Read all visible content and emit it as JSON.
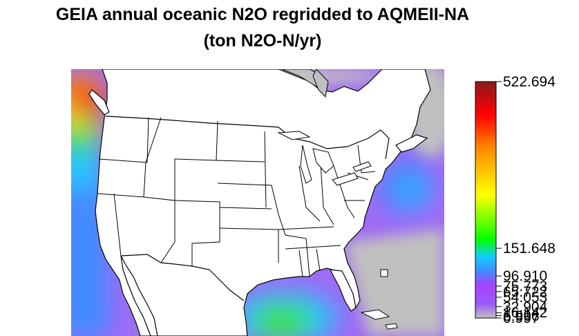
{
  "title": {
    "line1": "GEIA annual oceanic N2O regridded to AQMEII-NA",
    "line2": "(ton N2O-N/yr)"
  },
  "legend": {
    "breaks": [
      "522.694",
      "151.648",
      "96.910",
      "75.773",
      "65.722",
      "54.053",
      "32.904",
      "16.142",
      "6.996",
      "0.997"
    ],
    "break_values": [
      522.694,
      151.648,
      96.91,
      75.773,
      65.722,
      54.053,
      32.904,
      16.142,
      6.996,
      0.997
    ],
    "colors": [
      "#c0c0c0",
      "#9b59f5",
      "#a742ff",
      "#3f8cff",
      "#14ccff",
      "#00ff00",
      "#ffff00",
      "#ff8800",
      "#ff0000",
      "#8b1a1a"
    ]
  },
  "map": {
    "region": "AQMEII-NA",
    "colors": {
      "land": "#ffffff",
      "low": "#c0c0c0",
      "mid": "#a16af6",
      "blue": "#3f8cff",
      "cyan": "#14ccff",
      "green": "#3de03d",
      "yellow": "#ffff22",
      "orange": "#ff8c00",
      "red": "#ff2200",
      "darkred": "#8b1a1a",
      "outline": "#000000"
    }
  }
}
